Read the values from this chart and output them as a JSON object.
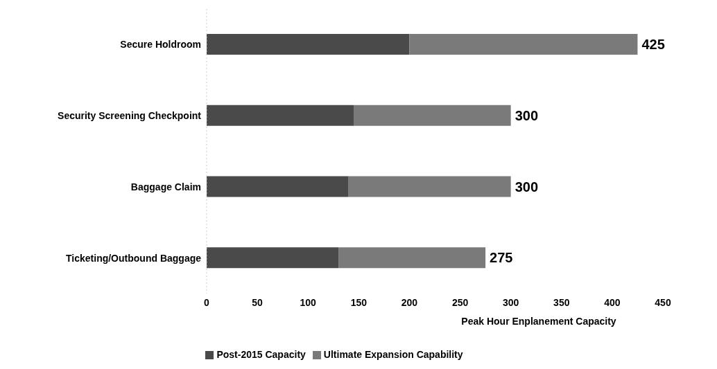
{
  "chart_data": {
    "type": "bar",
    "orientation": "horizontal",
    "stacked": true,
    "xlabel": "Peak Hour Enplanement Capacity",
    "categories": [
      "Secure Holdroom",
      "Security Screening Checkpoint",
      "Baggage Claim",
      "Ticketing/Outbound Baggage"
    ],
    "series": [
      {
        "name": "Post-2015 Capacity",
        "color": "#4a4a4a",
        "values": [
          200,
          145,
          140,
          130
        ]
      },
      {
        "name": "Ultimate Expansion Capability",
        "color": "#7a7a7a",
        "values": [
          225,
          155,
          160,
          145
        ]
      }
    ],
    "totals": [
      "425",
      "300",
      "300",
      "275"
    ],
    "xlim": [
      0,
      450
    ],
    "xticks": [
      0,
      50,
      100,
      150,
      200,
      250,
      300,
      350,
      400,
      450
    ],
    "legend": "bottom"
  }
}
